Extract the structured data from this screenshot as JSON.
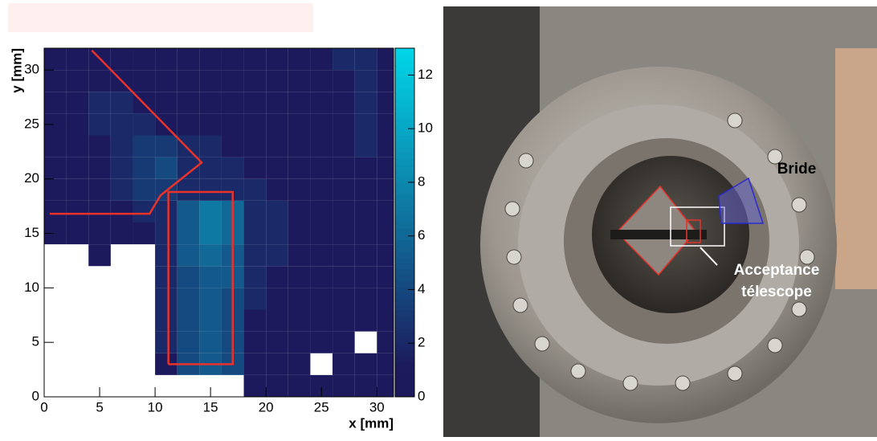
{
  "chart_data": {
    "type": "heatmap",
    "xlabel": "x [mm]",
    "ylabel": "y [mm]",
    "xlim": [
      0,
      31.5
    ],
    "ylim": [
      0,
      32
    ],
    "xticks": [
      0,
      5,
      10,
      15,
      20,
      25,
      30
    ],
    "yticks": [
      0,
      5,
      10,
      15,
      20,
      25,
      30
    ],
    "xbins": [
      0,
      2,
      4,
      6,
      8,
      10,
      12,
      14,
      16,
      18,
      20,
      22,
      24,
      26,
      28,
      30,
      32
    ],
    "ybins": [
      0,
      2,
      4,
      6,
      8,
      10,
      12,
      14,
      16,
      18,
      20,
      22,
      24,
      26,
      28,
      30,
      32
    ],
    "z": [
      [
        0,
        0,
        0,
        0,
        0,
        0,
        0,
        0,
        0,
        1,
        1,
        1,
        1,
        1,
        1,
        1
      ],
      [
        0,
        0,
        0,
        0,
        0,
        1,
        4,
        5,
        4,
        1,
        1,
        1,
        0,
        1,
        1,
        1
      ],
      [
        0,
        0,
        0,
        0,
        0,
        2,
        4,
        5,
        4,
        1,
        1,
        1,
        1,
        1,
        0,
        1
      ],
      [
        0,
        0,
        0,
        0,
        0,
        2,
        4,
        5,
        4,
        1,
        1,
        1,
        1,
        1,
        1,
        1
      ],
      [
        0,
        0,
        0,
        0,
        0,
        2,
        4,
        5,
        4,
        2,
        1,
        1,
        1,
        1,
        1,
        1
      ],
      [
        0,
        0,
        0,
        0,
        0,
        2,
        4,
        5,
        5,
        2,
        1,
        1,
        1,
        1,
        1,
        1
      ],
      [
        0,
        0,
        1,
        0,
        0,
        2,
        5,
        6,
        5,
        2,
        2,
        1,
        1,
        1,
        1,
        1
      ],
      [
        1,
        1,
        1,
        1,
        1,
        2,
        5,
        7,
        6,
        2,
        2,
        1,
        1,
        1,
        1,
        1
      ],
      [
        1,
        1,
        1,
        1,
        2,
        2,
        5,
        7,
        6,
        2,
        2,
        1,
        1,
        1,
        1,
        1
      ],
      [
        1,
        1,
        1,
        2,
        3,
        3,
        2,
        2,
        2,
        2,
        1,
        1,
        1,
        1,
        1,
        1
      ],
      [
        1,
        1,
        1,
        2,
        3,
        4,
        2,
        2,
        2,
        1,
        1,
        1,
        1,
        1,
        1,
        1
      ],
      [
        1,
        1,
        1,
        2,
        3,
        3,
        2,
        2,
        1,
        1,
        1,
        1,
        1,
        1,
        2,
        1
      ],
      [
        1,
        1,
        2,
        2,
        2,
        1,
        1,
        1,
        1,
        1,
        1,
        1,
        1,
        1,
        2,
        1
      ],
      [
        1,
        1,
        2,
        2,
        1,
        1,
        1,
        1,
        1,
        1,
        1,
        1,
        1,
        1,
        2,
        1
      ],
      [
        1,
        1,
        1,
        1,
        1,
        1,
        1,
        1,
        1,
        1,
        1,
        1,
        1,
        1,
        2,
        1
      ],
      [
        1,
        1,
        1,
        1,
        1,
        1,
        1,
        1,
        1,
        1,
        1,
        1,
        1,
        2,
        2,
        1
      ]
    ],
    "zlim": [
      0,
      13
    ],
    "zticks": [
      0,
      2,
      4,
      6,
      8,
      10,
      12
    ],
    "colors": [
      "#1c1a5c",
      "#00d8ea"
    ],
    "regions": [
      {
        "color": "#e8322a",
        "x": [
          4.3,
          14.2,
          10.5,
          9.5,
          0.5
        ],
        "y": [
          31.8,
          21.5,
          18.5,
          16.8,
          16.8
        ]
      },
      {
        "color": "#e8322a",
        "x": [
          11.2,
          11.2,
          17,
          17,
          11.2
        ],
        "y": [
          3,
          18.8,
          18.8,
          3,
          3
        ]
      }
    ]
  },
  "photo": {
    "labels": [
      "Bride",
      "Acceptance",
      "télescope"
    ]
  }
}
